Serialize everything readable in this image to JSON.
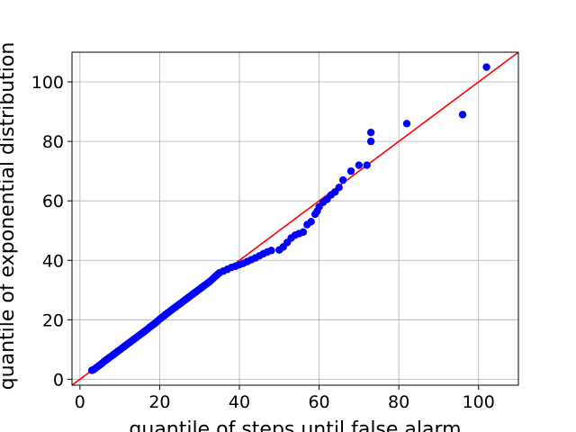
{
  "chart_data": {
    "type": "scatter",
    "xlabel": "quantile of steps until false alarm",
    "ylabel": "quantile of exponential distribution",
    "xlim": [
      -2,
      110
    ],
    "ylim": [
      -2,
      110
    ],
    "x_ticks": [
      0,
      20,
      40,
      60,
      80,
      100
    ],
    "y_ticks": [
      0,
      20,
      40,
      60,
      80,
      100
    ],
    "grid": true,
    "point_color": "#0000ff",
    "reference_line": {
      "color": "#ff0000",
      "slope": 1,
      "intercept": 0
    },
    "series": [
      {
        "x": [
          3,
          3.5,
          4,
          4.5,
          5,
          5.5,
          6,
          6.5,
          7,
          7.5,
          8,
          8.5,
          9,
          9.5,
          10,
          10.5,
          11,
          11.5,
          12,
          12.5,
          13,
          13.5,
          14,
          14.5,
          15,
          15.5,
          16,
          16.5,
          17,
          17.5,
          18,
          18.5,
          19,
          19.5,
          20,
          20.5,
          21,
          21.5,
          22,
          22.5,
          23,
          23.5,
          24,
          24.5,
          25,
          25.5,
          26,
          26.5,
          27,
          27.5,
          28,
          28.5,
          29,
          29.5,
          30,
          30.5,
          31,
          31.5,
          32,
          32.5,
          33,
          33.5,
          34,
          34.5,
          35,
          36,
          37,
          38,
          39,
          40,
          41,
          42,
          43,
          44,
          45,
          46,
          47,
          48,
          50,
          51,
          52,
          53,
          54,
          55,
          56,
          57,
          58,
          59,
          59.5,
          60,
          61,
          62,
          63,
          64,
          65,
          66,
          68,
          70,
          72,
          73,
          73,
          82,
          96,
          102
        ],
        "y": [
          3,
          3.3,
          3.8,
          4.3,
          4.8,
          5.3,
          5.9,
          6.4,
          6.9,
          7.4,
          7.9,
          8.4,
          8.9,
          9.4,
          9.9,
          10.4,
          10.9,
          11.4,
          11.9,
          12.4,
          12.9,
          13.4,
          13.9,
          14.4,
          14.9,
          15.4,
          15.9,
          16.4,
          16.9,
          17.5,
          18,
          18.5,
          19,
          19.6,
          20.2,
          20.7,
          21.2,
          21.8,
          22.3,
          22.8,
          23.3,
          23.8,
          24.3,
          24.8,
          25.3,
          25.8,
          26.3,
          26.8,
          27.3,
          27.8,
          28.3,
          28.8,
          29.3,
          29.8,
          30.3,
          30.8,
          31.3,
          31.8,
          32.3,
          32.8,
          33.4,
          34,
          34.6,
          35.2,
          35.8,
          36.4,
          37,
          37.6,
          38,
          38.5,
          39,
          39.6,
          40.2,
          40.8,
          41.5,
          42.2,
          42.8,
          43.3,
          43.5,
          44.5,
          46,
          47.5,
          48.5,
          49,
          49.5,
          52,
          53,
          55.5,
          56.5,
          58,
          59.5,
          60.5,
          62,
          63,
          64.5,
          67,
          70,
          72,
          72,
          80,
          83,
          86,
          89,
          105
        ]
      }
    ]
  }
}
